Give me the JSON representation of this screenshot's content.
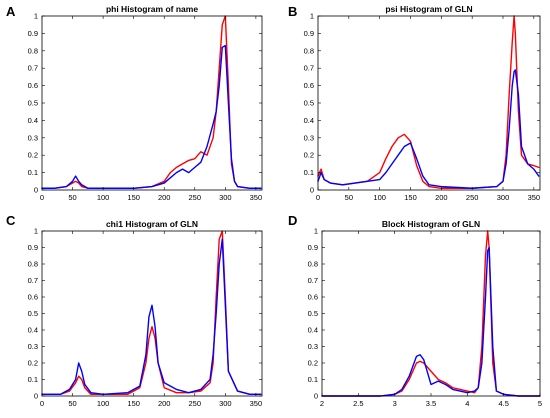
{
  "chart_data": [
    {
      "panel": "A",
      "type": "line",
      "title": "phi Histogram of name",
      "xlim": [
        0,
        360
      ],
      "ylim": [
        0,
        1
      ],
      "xticks": [
        0,
        50,
        100,
        150,
        200,
        250,
        300,
        350
      ],
      "xtick_labels": [
        "0",
        "50",
        "100",
        "150",
        "200",
        "250",
        "300",
        "350"
      ],
      "yticks": [
        0,
        0.1,
        0.2,
        0.3,
        0.4,
        0.5,
        0.6,
        0.7,
        0.8,
        0.9,
        1
      ],
      "ytick_labels": [
        "0",
        "0.1",
        "0.2",
        "0.3",
        "0.4",
        "0.5",
        "0.6",
        "0.7",
        "0.8",
        "0.9",
        "1"
      ],
      "grid": false,
      "series": [
        {
          "color": "#ff0000",
          "x": [
            0,
            20,
            40,
            50,
            55,
            60,
            65,
            75,
            100,
            150,
            180,
            200,
            210,
            220,
            230,
            240,
            250,
            260,
            270,
            280,
            285,
            290,
            295,
            300,
            305,
            310,
            315,
            320,
            340,
            358
          ],
          "y": [
            0.01,
            0.01,
            0.02,
            0.04,
            0.05,
            0.04,
            0.02,
            0.01,
            0.01,
            0.01,
            0.02,
            0.05,
            0.1,
            0.13,
            0.15,
            0.17,
            0.18,
            0.22,
            0.2,
            0.3,
            0.45,
            0.7,
            0.95,
            1.0,
            0.6,
            0.15,
            0.05,
            0.02,
            0.01,
            0.01
          ]
        },
        {
          "color": "#0000ff",
          "x": [
            0,
            20,
            40,
            50,
            55,
            60,
            65,
            75,
            100,
            150,
            180,
            200,
            210,
            220,
            230,
            240,
            250,
            260,
            270,
            280,
            285,
            290,
            295,
            300,
            305,
            310,
            315,
            320,
            340,
            358
          ],
          "y": [
            0.01,
            0.01,
            0.02,
            0.05,
            0.08,
            0.05,
            0.03,
            0.01,
            0.01,
            0.01,
            0.02,
            0.04,
            0.07,
            0.1,
            0.12,
            0.1,
            0.13,
            0.16,
            0.25,
            0.38,
            0.45,
            0.6,
            0.82,
            0.83,
            0.5,
            0.18,
            0.05,
            0.02,
            0.01,
            0.01
          ]
        }
      ]
    },
    {
      "panel": "B",
      "type": "line",
      "title": "psi Histogram of GLN",
      "xlim": [
        0,
        360
      ],
      "ylim": [
        0,
        1
      ],
      "xticks": [
        0,
        50,
        100,
        150,
        200,
        250,
        300,
        350
      ],
      "xtick_labels": [
        "0",
        "50",
        "100",
        "150",
        "200",
        "250",
        "300",
        "350"
      ],
      "yticks": [
        0,
        0.1,
        0.2,
        0.3,
        0.4,
        0.5,
        0.6,
        0.7,
        0.8,
        0.9,
        1
      ],
      "ytick_labels": [
        "0",
        "0.1",
        "0.2",
        "0.3",
        "0.4",
        "0.5",
        "0.6",
        "0.7",
        "0.8",
        "0.9",
        "1"
      ],
      "grid": false,
      "series": [
        {
          "color": "#ff0000",
          "x": [
            0,
            5,
            10,
            20,
            40,
            60,
            80,
            100,
            110,
            120,
            130,
            140,
            150,
            160,
            170,
            180,
            200,
            250,
            290,
            300,
            305,
            310,
            315,
            318,
            320,
            325,
            330,
            340,
            350,
            358
          ],
          "y": [
            0.08,
            0.12,
            0.06,
            0.04,
            0.03,
            0.04,
            0.05,
            0.1,
            0.18,
            0.25,
            0.3,
            0.32,
            0.28,
            0.14,
            0.05,
            0.02,
            0.01,
            0.01,
            0.02,
            0.05,
            0.2,
            0.55,
            0.85,
            1.0,
            0.9,
            0.45,
            0.2,
            0.15,
            0.14,
            0.13
          ]
        },
        {
          "color": "#0000ff",
          "x": [
            0,
            5,
            10,
            20,
            40,
            60,
            80,
            100,
            110,
            120,
            130,
            140,
            150,
            160,
            170,
            180,
            200,
            250,
            290,
            300,
            305,
            310,
            315,
            318,
            320,
            325,
            330,
            340,
            350,
            358
          ],
          "y": [
            0.05,
            0.1,
            0.06,
            0.04,
            0.03,
            0.04,
            0.05,
            0.06,
            0.1,
            0.15,
            0.2,
            0.25,
            0.27,
            0.18,
            0.08,
            0.03,
            0.02,
            0.01,
            0.02,
            0.05,
            0.15,
            0.35,
            0.6,
            0.68,
            0.69,
            0.55,
            0.25,
            0.15,
            0.12,
            0.08
          ]
        }
      ]
    },
    {
      "panel": "C",
      "type": "line",
      "title": "chi1 Histogram of GLN",
      "xlim": [
        0,
        360
      ],
      "ylim": [
        0,
        1
      ],
      "xticks": [
        0,
        50,
        100,
        150,
        200,
        250,
        300,
        350
      ],
      "xtick_labels": [
        "0",
        "50",
        "100",
        "150",
        "200",
        "250",
        "300",
        "350"
      ],
      "yticks": [
        0,
        0.1,
        0.2,
        0.3,
        0.4,
        0.5,
        0.6,
        0.7,
        0.8,
        0.9,
        1
      ],
      "ytick_labels": [
        "0",
        "0.1",
        "0.2",
        "0.3",
        "0.4",
        "0.5",
        "0.6",
        "0.7",
        "0.8",
        "0.9",
        "1"
      ],
      "grid": false,
      "series": [
        {
          "color": "#ff0000",
          "x": [
            0,
            30,
            45,
            55,
            60,
            65,
            70,
            80,
            100,
            140,
            160,
            170,
            175,
            180,
            185,
            190,
            200,
            220,
            240,
            260,
            275,
            280,
            285,
            290,
            295,
            300,
            305,
            320,
            340,
            358
          ],
          "y": [
            0.01,
            0.01,
            0.03,
            0.08,
            0.12,
            0.1,
            0.05,
            0.01,
            0.01,
            0.01,
            0.05,
            0.2,
            0.35,
            0.42,
            0.35,
            0.2,
            0.05,
            0.02,
            0.02,
            0.03,
            0.08,
            0.2,
            0.6,
            0.95,
            1.0,
            0.6,
            0.15,
            0.03,
            0.01,
            0.01
          ]
        },
        {
          "color": "#0000ff",
          "x": [
            0,
            30,
            45,
            55,
            60,
            65,
            70,
            80,
            100,
            140,
            160,
            170,
            175,
            180,
            185,
            190,
            200,
            220,
            240,
            260,
            275,
            280,
            285,
            290,
            295,
            300,
            305,
            320,
            340,
            358
          ],
          "y": [
            0.01,
            0.01,
            0.04,
            0.1,
            0.2,
            0.15,
            0.07,
            0.02,
            0.01,
            0.02,
            0.06,
            0.25,
            0.48,
            0.55,
            0.42,
            0.2,
            0.08,
            0.04,
            0.02,
            0.04,
            0.1,
            0.25,
            0.5,
            0.8,
            0.95,
            0.55,
            0.15,
            0.03,
            0.01,
            0.01
          ]
        }
      ]
    },
    {
      "panel": "D",
      "type": "line",
      "title": "Block Histogram of GLN",
      "xlim": [
        2,
        5
      ],
      "ylim": [
        0,
        1
      ],
      "xticks": [
        2,
        2.5,
        3,
        3.5,
        4,
        4.5,
        5
      ],
      "xtick_labels": [
        "2",
        "2.5",
        "3",
        "3.5",
        "4",
        "4.5",
        "5"
      ],
      "yticks": [
        0,
        0.1,
        0.2,
        0.3,
        0.4,
        0.5,
        0.6,
        0.7,
        0.8,
        0.9,
        1
      ],
      "ytick_labels": [
        "0",
        "0.1",
        "0.2",
        "0.3",
        "0.4",
        "0.5",
        "0.6",
        "0.7",
        "0.8",
        "0.9",
        "1"
      ],
      "grid": false,
      "series": [
        {
          "color": "#ff0000",
          "x": [
            2.0,
            2.8,
            3.0,
            3.1,
            3.2,
            3.3,
            3.35,
            3.4,
            3.5,
            3.6,
            3.7,
            3.8,
            4.0,
            4.1,
            4.15,
            4.2,
            4.25,
            4.28,
            4.3,
            4.35,
            4.4,
            4.5,
            4.7,
            5.0
          ],
          "y": [
            0.0,
            0.0,
            0.01,
            0.03,
            0.1,
            0.2,
            0.21,
            0.2,
            0.15,
            0.1,
            0.08,
            0.05,
            0.03,
            0.02,
            0.05,
            0.3,
            0.85,
            1.0,
            0.9,
            0.2,
            0.03,
            0.01,
            0.0,
            0.0
          ]
        },
        {
          "color": "#0000ff",
          "x": [
            2.0,
            2.8,
            3.0,
            3.1,
            3.2,
            3.3,
            3.35,
            3.4,
            3.5,
            3.6,
            3.7,
            3.8,
            4.0,
            4.1,
            4.15,
            4.2,
            4.25,
            4.28,
            4.3,
            4.35,
            4.4,
            4.5,
            4.7,
            5.0
          ],
          "y": [
            0.0,
            0.0,
            0.01,
            0.04,
            0.12,
            0.24,
            0.25,
            0.22,
            0.07,
            0.09,
            0.07,
            0.04,
            0.02,
            0.03,
            0.05,
            0.2,
            0.6,
            0.88,
            0.9,
            0.3,
            0.03,
            0.01,
            0.0,
            0.0
          ]
        }
      ]
    }
  ]
}
